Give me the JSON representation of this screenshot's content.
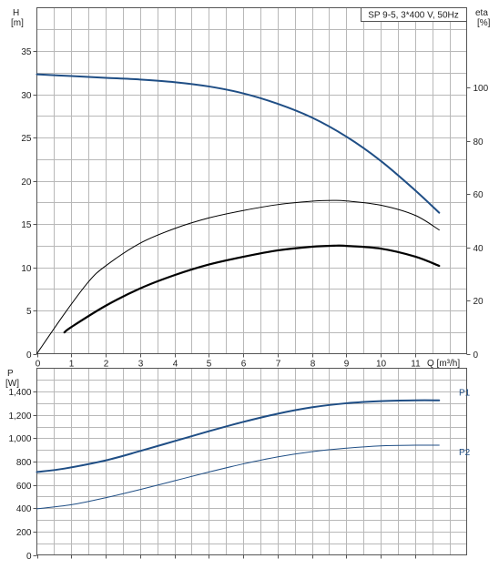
{
  "chart_data": [
    {
      "type": "line",
      "title": "SP 9-5, 3*400 V, 50Hz",
      "xlabel": "Q [m³/h]",
      "ylabel": "H",
      "ylabel_unit": "[m]",
      "y2label": "eta",
      "y2label_unit": "[%]",
      "xlim": [
        0,
        12.5
      ],
      "ylim": [
        0,
        40
      ],
      "y2lim": [
        0,
        130
      ],
      "x_ticks": [
        "0",
        "1",
        "2",
        "3",
        "4",
        "5",
        "6",
        "7",
        "8",
        "9",
        "10",
        "11"
      ],
      "y_ticks": [
        "0",
        "5",
        "10",
        "15",
        "20",
        "25",
        "30",
        "35"
      ],
      "y2_ticks": [
        "0",
        "20",
        "40",
        "60",
        "80",
        "100"
      ],
      "grid": true,
      "series": [
        {
          "axis": "left",
          "color": "#1f4e85",
          "x": [
            0,
            1,
            2,
            3,
            4,
            5,
            6,
            7,
            8,
            9,
            10,
            11,
            11.7
          ],
          "y": [
            32.3,
            32.1,
            31.9,
            31.7,
            31.4,
            30.9,
            30.1,
            28.9,
            27.3,
            25.1,
            22.3,
            18.9,
            16.3
          ]
        },
        {
          "axis": "right",
          "color": "#000000",
          "x": [
            0,
            0.8,
            1.5,
            2,
            3,
            4,
            5,
            6,
            7,
            8,
            8.6,
            9,
            10,
            11,
            11.7
          ],
          "y": [
            0,
            15,
            27,
            33,
            41.5,
            47,
            51,
            53.8,
            56,
            57.3,
            57.6,
            57.4,
            55.8,
            52,
            46.5
          ]
        },
        {
          "axis": "right",
          "color": "#000000",
          "x": [
            0.8,
            1,
            2,
            3,
            4,
            5,
            6,
            7,
            8,
            8.7,
            9,
            10,
            11,
            11.7
          ],
          "y": [
            8,
            10,
            18,
            24.5,
            29.5,
            33.5,
            36.4,
            38.8,
            40.2,
            40.6,
            40.5,
            39.5,
            36.5,
            33
          ]
        }
      ]
    },
    {
      "type": "line",
      "xlim": [
        0,
        12.5
      ],
      "ylim": [
        0,
        1600
      ],
      "ylabel": "P",
      "ylabel_unit": "[W]",
      "y_ticks": [
        "0",
        "200",
        "400",
        "600",
        "800",
        "1,000",
        "1,200",
        "1,400"
      ],
      "grid": true,
      "series": [
        {
          "name": "P1",
          "color": "#1f4e85",
          "x": [
            0,
            0.8,
            2,
            3,
            4,
            5,
            6,
            7,
            8,
            9,
            10,
            11,
            11.7
          ],
          "y": [
            710,
            740,
            810,
            890,
            975,
            1060,
            1140,
            1210,
            1265,
            1300,
            1318,
            1325,
            1325
          ]
        },
        {
          "name": "P2",
          "color": "#1f4e85",
          "x": [
            0,
            1,
            2,
            3,
            4,
            5,
            6,
            7,
            8,
            9,
            10,
            11,
            11.7
          ],
          "y": [
            395,
            430,
            490,
            560,
            635,
            710,
            780,
            840,
            885,
            915,
            935,
            940,
            940
          ]
        }
      ]
    }
  ]
}
